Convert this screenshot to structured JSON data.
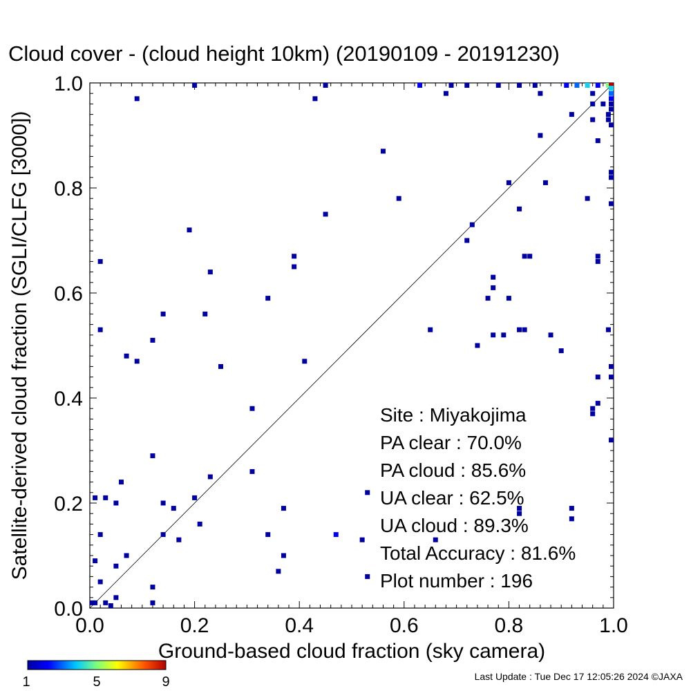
{
  "chart_data": {
    "type": "heatmap",
    "title": "Cloud cover - (cloud height 10km)  (20190109 - 20191230)",
    "xlabel": "Ground-based cloud fraction (sky camera)",
    "ylabel": "Satellite-derived cloud fraction (SGLI/CLFG [3000])",
    "xlim": [
      0,
      1
    ],
    "ylim": [
      0,
      1
    ],
    "x_ticks": [
      "0.0",
      "0.2",
      "0.4",
      "0.6",
      "0.8",
      "1.0"
    ],
    "y_ticks": [
      "0.0",
      "0.2",
      "0.4",
      "0.6",
      "0.8",
      "1.0"
    ],
    "reference_line": "1:1 diagonal",
    "grid": false,
    "colorbar": {
      "min_label": "1",
      "mid_label": "5",
      "max_label": "9",
      "min": 1,
      "max": 9
    },
    "stats": [
      "Site : Miyakojima",
      "PA clear :  70.0%",
      "PA cloud :  85.6%",
      "UA clear :  62.5%",
      "UA cloud :  89.3%",
      "Total Accuracy :  81.6%",
      "Plot number :       196"
    ],
    "points": [
      [
        0.2,
        1.0,
        1
      ],
      [
        0.45,
        1.0,
        1
      ],
      [
        0.63,
        1.0,
        2
      ],
      [
        0.69,
        1.0,
        1
      ],
      [
        0.72,
        1.0,
        1
      ],
      [
        0.78,
        1.0,
        1
      ],
      [
        0.82,
        1.0,
        1
      ],
      [
        0.85,
        1.0,
        1
      ],
      [
        0.91,
        1.0,
        2
      ],
      [
        0.93,
        1.0,
        3
      ],
      [
        0.95,
        1.0,
        4
      ],
      [
        0.97,
        1.0,
        2
      ],
      [
        0.99,
        1.0,
        5
      ],
      [
        1.0,
        1.0,
        9
      ],
      [
        1.0,
        0.99,
        4
      ],
      [
        1.0,
        0.98,
        3
      ],
      [
        1.0,
        0.97,
        2
      ],
      [
        1.0,
        0.96,
        1
      ],
      [
        1.0,
        0.95,
        1
      ],
      [
        0.96,
        0.96,
        1
      ],
      [
        0.09,
        0.97,
        1
      ],
      [
        0.43,
        0.97,
        1
      ],
      [
        0.68,
        0.98,
        1
      ],
      [
        0.86,
        0.98,
        1
      ],
      [
        0.96,
        0.98,
        1
      ],
      [
        0.98,
        0.96,
        1
      ],
      [
        0.99,
        0.94,
        1
      ],
      [
        0.99,
        0.93,
        1
      ],
      [
        0.96,
        0.93,
        1
      ],
      [
        0.92,
        0.94,
        1
      ],
      [
        1.0,
        0.92,
        1
      ],
      [
        0.97,
        0.89,
        1
      ],
      [
        0.86,
        0.9,
        1
      ],
      [
        0.56,
        0.87,
        1
      ],
      [
        0.8,
        0.81,
        1
      ],
      [
        0.87,
        0.81,
        1
      ],
      [
        1.0,
        0.83,
        1
      ],
      [
        1.0,
        0.82,
        1
      ],
      [
        0.59,
        0.78,
        1
      ],
      [
        0.95,
        0.78,
        1
      ],
      [
        1.0,
        0.77,
        1
      ],
      [
        0.82,
        0.76,
        1
      ],
      [
        0.45,
        0.75,
        1
      ],
      [
        0.19,
        0.72,
        1
      ],
      [
        0.73,
        0.73,
        1
      ],
      [
        0.72,
        0.7,
        1
      ],
      [
        0.83,
        0.67,
        1
      ],
      [
        0.84,
        0.67,
        1
      ],
      [
        0.97,
        0.67,
        1
      ],
      [
        0.97,
        0.66,
        1
      ],
      [
        0.39,
        0.67,
        1
      ],
      [
        0.02,
        0.66,
        1
      ],
      [
        0.39,
        0.65,
        1
      ],
      [
        0.23,
        0.64,
        1
      ],
      [
        0.77,
        0.63,
        1
      ],
      [
        0.77,
        0.61,
        1
      ],
      [
        0.34,
        0.59,
        1
      ],
      [
        0.76,
        0.59,
        1
      ],
      [
        0.8,
        0.59,
        1
      ],
      [
        0.14,
        0.56,
        1
      ],
      [
        0.22,
        0.56,
        1
      ],
      [
        0.02,
        0.53,
        1
      ],
      [
        0.65,
        0.53,
        1
      ],
      [
        0.82,
        0.53,
        1
      ],
      [
        0.83,
        0.53,
        1
      ],
      [
        0.99,
        0.53,
        1
      ],
      [
        0.77,
        0.52,
        1
      ],
      [
        0.79,
        0.52,
        1
      ],
      [
        0.88,
        0.52,
        1
      ],
      [
        0.12,
        0.51,
        1
      ],
      [
        0.74,
        0.5,
        1
      ],
      [
        0.9,
        0.49,
        1
      ],
      [
        0.07,
        0.48,
        1
      ],
      [
        0.09,
        0.47,
        1
      ],
      [
        0.41,
        0.47,
        1
      ],
      [
        0.25,
        0.46,
        1
      ],
      [
        1.0,
        0.46,
        1
      ],
      [
        0.97,
        0.44,
        1
      ],
      [
        1.0,
        0.44,
        1
      ],
      [
        0.97,
        0.39,
        1
      ],
      [
        0.96,
        0.38,
        1
      ],
      [
        0.96,
        0.37,
        1
      ],
      [
        0.31,
        0.38,
        1
      ],
      [
        1.0,
        0.32,
        1
      ],
      [
        0.12,
        0.29,
        1
      ],
      [
        0.31,
        0.26,
        1
      ],
      [
        0.23,
        0.25,
        1
      ],
      [
        0.06,
        0.24,
        1
      ],
      [
        0.53,
        0.22,
        1
      ],
      [
        0.01,
        0.21,
        1
      ],
      [
        0.03,
        0.21,
        1
      ],
      [
        0.05,
        0.2,
        1
      ],
      [
        0.14,
        0.2,
        1
      ],
      [
        0.2,
        0.21,
        1
      ],
      [
        0.16,
        0.19,
        1
      ],
      [
        0.37,
        0.19,
        1
      ],
      [
        0.92,
        0.19,
        1
      ],
      [
        0.82,
        0.19,
        1
      ],
      [
        0.82,
        0.18,
        1
      ],
      [
        0.92,
        0.17,
        1
      ],
      [
        0.21,
        0.16,
        1
      ],
      [
        0.02,
        0.14,
        1
      ],
      [
        0.14,
        0.14,
        1
      ],
      [
        0.34,
        0.14,
        1
      ],
      [
        0.47,
        0.14,
        2
      ],
      [
        0.17,
        0.13,
        1
      ],
      [
        0.52,
        0.13,
        1
      ],
      [
        0.66,
        0.13,
        1
      ],
      [
        0.01,
        0.09,
        1
      ],
      [
        0.07,
        0.1,
        1
      ],
      [
        0.37,
        0.1,
        1
      ],
      [
        0.05,
        0.08,
        1
      ],
      [
        0.36,
        0.07,
        1
      ],
      [
        0.02,
        0.05,
        1
      ],
      [
        0.53,
        0.06,
        1
      ],
      [
        0.12,
        0.04,
        1
      ],
      [
        0.05,
        0.02,
        1
      ],
      [
        0.0,
        0.01,
        1
      ],
      [
        0.01,
        0.01,
        1
      ],
      [
        0.03,
        0.01,
        1
      ],
      [
        0.12,
        0.01,
        1
      ],
      [
        0.04,
        0.0,
        1
      ]
    ]
  },
  "footer": "Last Update : Tue Dec 17 12:05:26 2024  ©JAXA"
}
